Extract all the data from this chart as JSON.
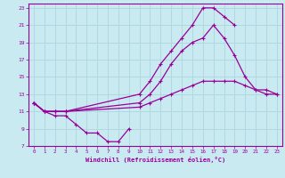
{
  "xlabel": "Windchill (Refroidissement éolien,°C)",
  "ylabel": "",
  "xlim": [
    -0.5,
    23.5
  ],
  "ylim": [
    7,
    23.5
  ],
  "xticks": [
    0,
    1,
    2,
    3,
    4,
    5,
    6,
    7,
    8,
    9,
    10,
    11,
    12,
    13,
    14,
    15,
    16,
    17,
    18,
    19,
    20,
    21,
    22,
    23
  ],
  "yticks": [
    7,
    9,
    11,
    13,
    15,
    17,
    19,
    21,
    23
  ],
  "background_color": "#c8eaf0",
  "grid_color": "#b0d8e0",
  "line_color": "#990099",
  "series": [
    {
      "x": [
        0,
        1,
        2,
        3,
        10,
        11,
        12,
        13,
        14,
        15,
        16,
        17,
        18,
        19
      ],
      "y": [
        12.0,
        11.0,
        11.0,
        11.0,
        13.0,
        14.5,
        16.5,
        18.0,
        19.5,
        21.0,
        23.0,
        23.0,
        22.0,
        21.0
      ]
    },
    {
      "x": [
        0,
        1,
        2,
        3,
        10,
        11,
        12,
        13,
        14,
        15,
        16,
        17,
        18,
        19,
        20,
        21,
        22,
        23
      ],
      "y": [
        12.0,
        11.0,
        11.0,
        11.0,
        12.0,
        13.0,
        14.5,
        16.5,
        18.0,
        19.0,
        19.5,
        21.0,
        19.5,
        17.5,
        15.0,
        13.5,
        13.0,
        13.0
      ]
    },
    {
      "x": [
        0,
        1,
        2,
        3,
        10,
        11,
        12,
        13,
        14,
        15,
        16,
        17,
        18,
        19,
        20,
        21,
        22,
        23
      ],
      "y": [
        12.0,
        11.0,
        11.0,
        11.0,
        11.5,
        12.0,
        12.5,
        13.0,
        13.5,
        14.0,
        14.5,
        14.5,
        14.5,
        14.5,
        14.0,
        13.5,
        13.5,
        13.0
      ]
    },
    {
      "x": [
        0,
        1,
        2,
        3,
        4,
        5,
        6,
        7,
        8,
        9
      ],
      "y": [
        12.0,
        11.0,
        10.5,
        10.5,
        9.5,
        8.5,
        8.5,
        7.5,
        7.5,
        9.0
      ]
    }
  ]
}
